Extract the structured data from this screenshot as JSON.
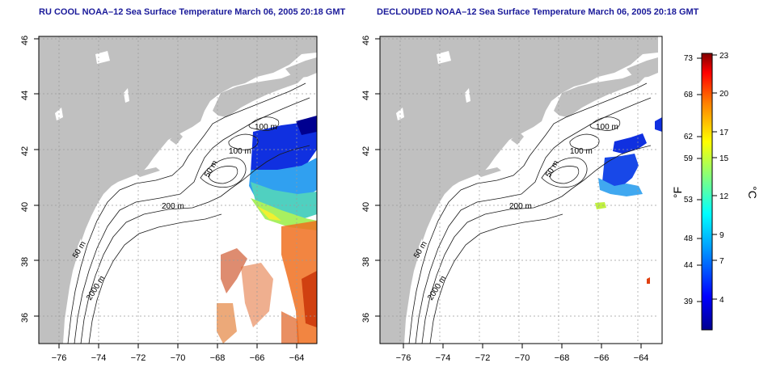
{
  "left_panel": {
    "title": "RU COOL NOAA–12 Sea Surface Temperature March 06, 2005 20:18 GMT",
    "contour_labels": [
      "100 m",
      "100 m",
      "50 m",
      "200 m",
      "50 m",
      "2000 m"
    ]
  },
  "right_panel": {
    "title": "DECLOUDED NOAA–12 Sea Surface Temperature March 06, 2005 20:18 GMT",
    "contour_labels": [
      "100 m",
      "100 m",
      "50 m",
      "200 m",
      "50 m",
      "2000 m"
    ]
  },
  "axes": {
    "lon_ticks": [
      "−76",
      "−74",
      "−72",
      "−70",
      "−68",
      "−66",
      "−64"
    ],
    "lat_ticks": [
      "46",
      "44",
      "42",
      "40",
      "38",
      "36"
    ]
  },
  "colorbar": {
    "fahrenheit_label": "°F",
    "celsius_label": "°C",
    "fahrenheit_ticks": [
      "73",
      "68",
      "62",
      "59",
      "53",
      "48",
      "44",
      "39"
    ],
    "celsius_ticks": [
      "23",
      "20",
      "17",
      "15",
      "12",
      "9",
      "7",
      "4"
    ]
  },
  "colors": {
    "land": "#c0c0c0",
    "ocean": "#ffffff",
    "title": "#1a1a9a",
    "grid": "#9a9a9a"
  }
}
